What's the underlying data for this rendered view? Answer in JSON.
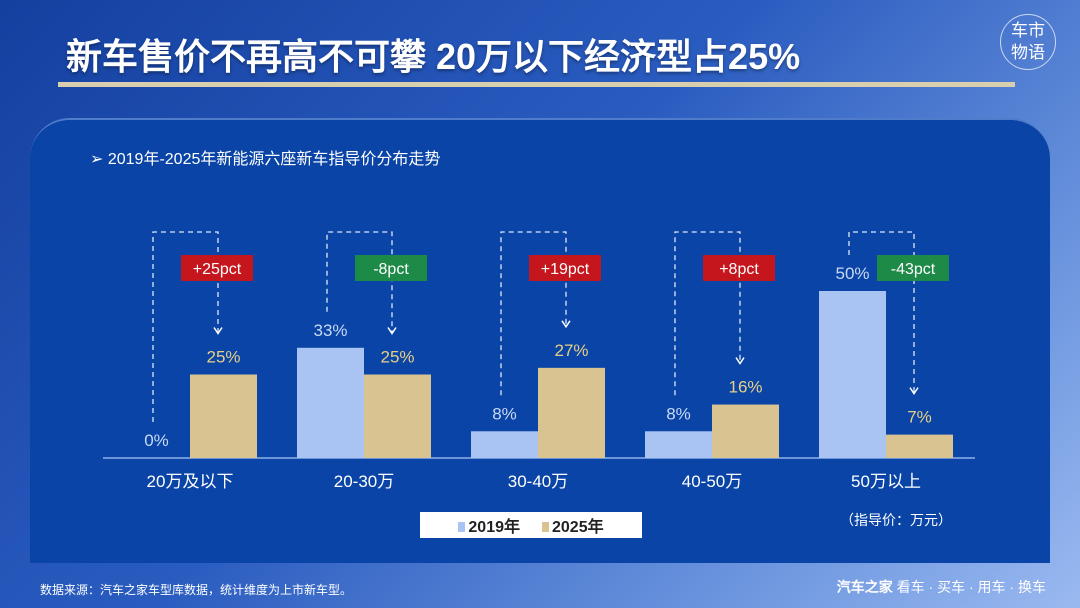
{
  "title": "新车售价不再高不可攀 20万以下经济型占25%",
  "logo_text": "车市物语",
  "subtitle": "2019年-2025年新能源六座新车指导价分布走势",
  "unit": "（指导价：万元）",
  "source": "数据来源：汽车之家车型库数据，统计维度为上市新车型。",
  "brand": {
    "name": "汽车之家",
    "slogan": "看车 · 买车 · 用车 · 换车"
  },
  "colors": {
    "s2019": "#a9c4f2",
    "s2025": "#d8c391",
    "up": "#c4161c",
    "down": "#1d8a47"
  },
  "chart_data": {
    "type": "bar",
    "title": "2019年-2025年新能源六座新车指导价分布走势",
    "categories": [
      "20万及以下",
      "20-30万",
      "30-40万",
      "40-50万",
      "50万以上"
    ],
    "series": [
      {
        "name": "2019年",
        "values": [
          0,
          33,
          8,
          8,
          50
        ],
        "labels": [
          "0%",
          "33%",
          "8%",
          "8%",
          "50%"
        ]
      },
      {
        "name": "2025年",
        "values": [
          25,
          25,
          27,
          16,
          7
        ],
        "labels": [
          "25%",
          "25%",
          "27%",
          "16%",
          "7%"
        ]
      }
    ],
    "changes": [
      "+25pct",
      "-8pct",
      "+19pct",
      "+8pct",
      "-43pct"
    ],
    "ylim": [
      0,
      50
    ],
    "legend": "bottom-center"
  }
}
